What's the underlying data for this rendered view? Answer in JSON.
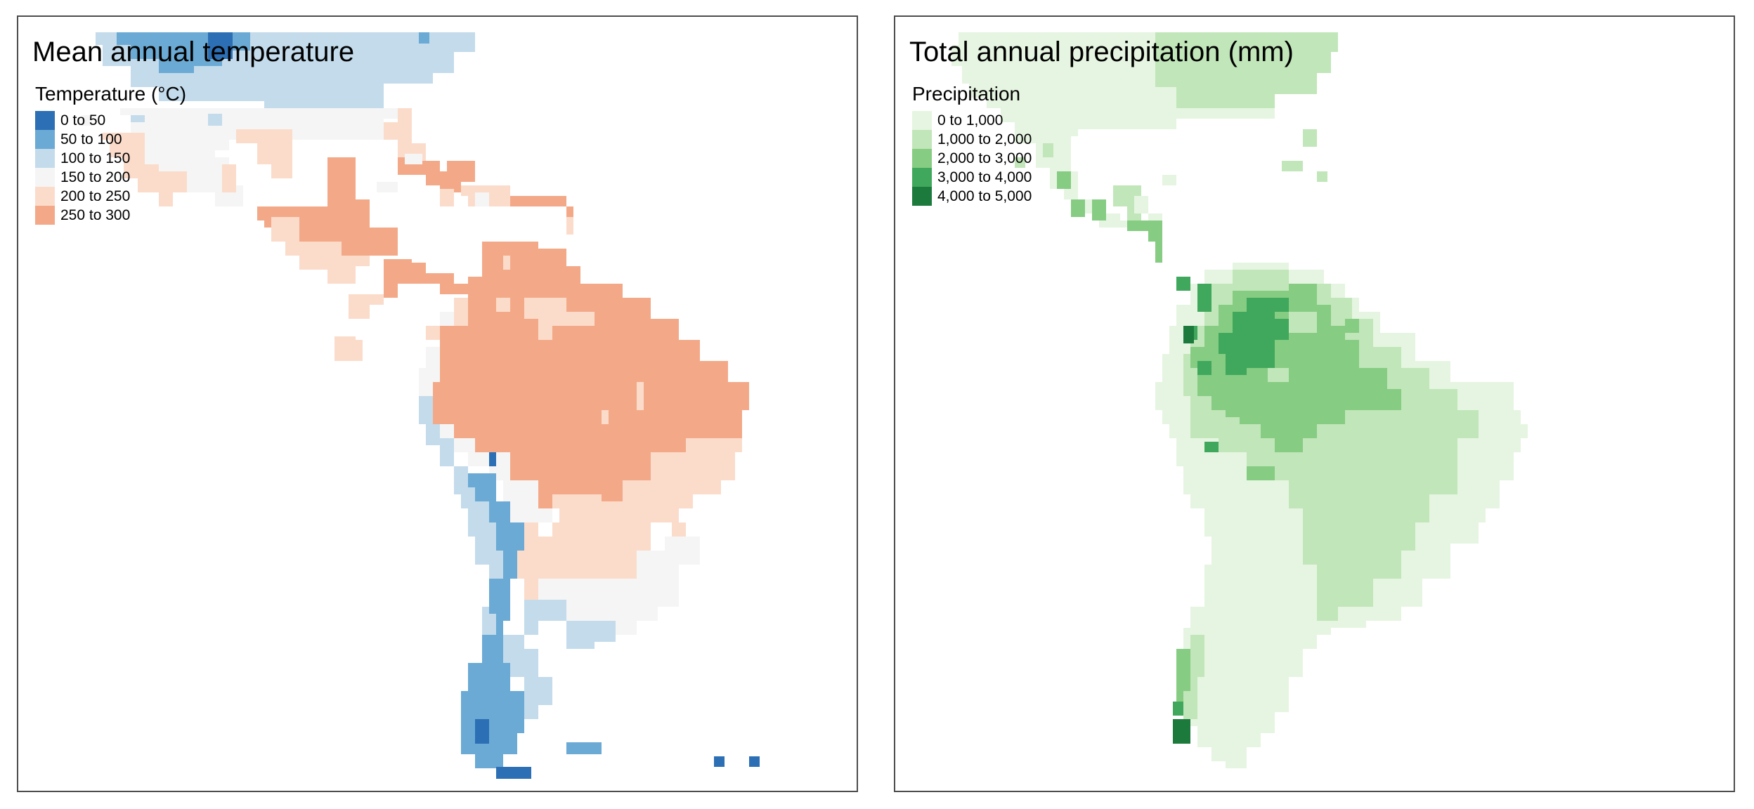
{
  "maps": [
    {
      "title": "Mean annual temperature",
      "legend": {
        "title": "Temperature (°C)",
        "items": [
          {
            "label": "0 to 50",
            "color": "#2c6fb5"
          },
          {
            "label": "50 to 100",
            "color": "#6aaad4"
          },
          {
            "label": "100 to 150",
            "color": "#c3dbeb"
          },
          {
            "label": "150 to 200",
            "color": "#f5f5f5"
          },
          {
            "label": "200 to 250",
            "color": "#fbdccb"
          },
          {
            "label": "250 to 300",
            "color": "#f3a988"
          }
        ]
      }
    },
    {
      "title": "Total annual precipitation (mm)",
      "legend": {
        "title": "Precipitation",
        "items": [
          {
            "label": "0 to 1,000",
            "color": "#e6f5e1"
          },
          {
            "label": "1,000 to 2,000",
            "color": "#c1e6b9"
          },
          {
            "label": "2,000 to 3,000",
            "color": "#86cc83"
          },
          {
            "label": "3,000 to 4,000",
            "color": "#3fa85c"
          },
          {
            "label": "4,000 to 5,000",
            "color": "#1b7a3c"
          }
        ]
      }
    }
  ]
}
